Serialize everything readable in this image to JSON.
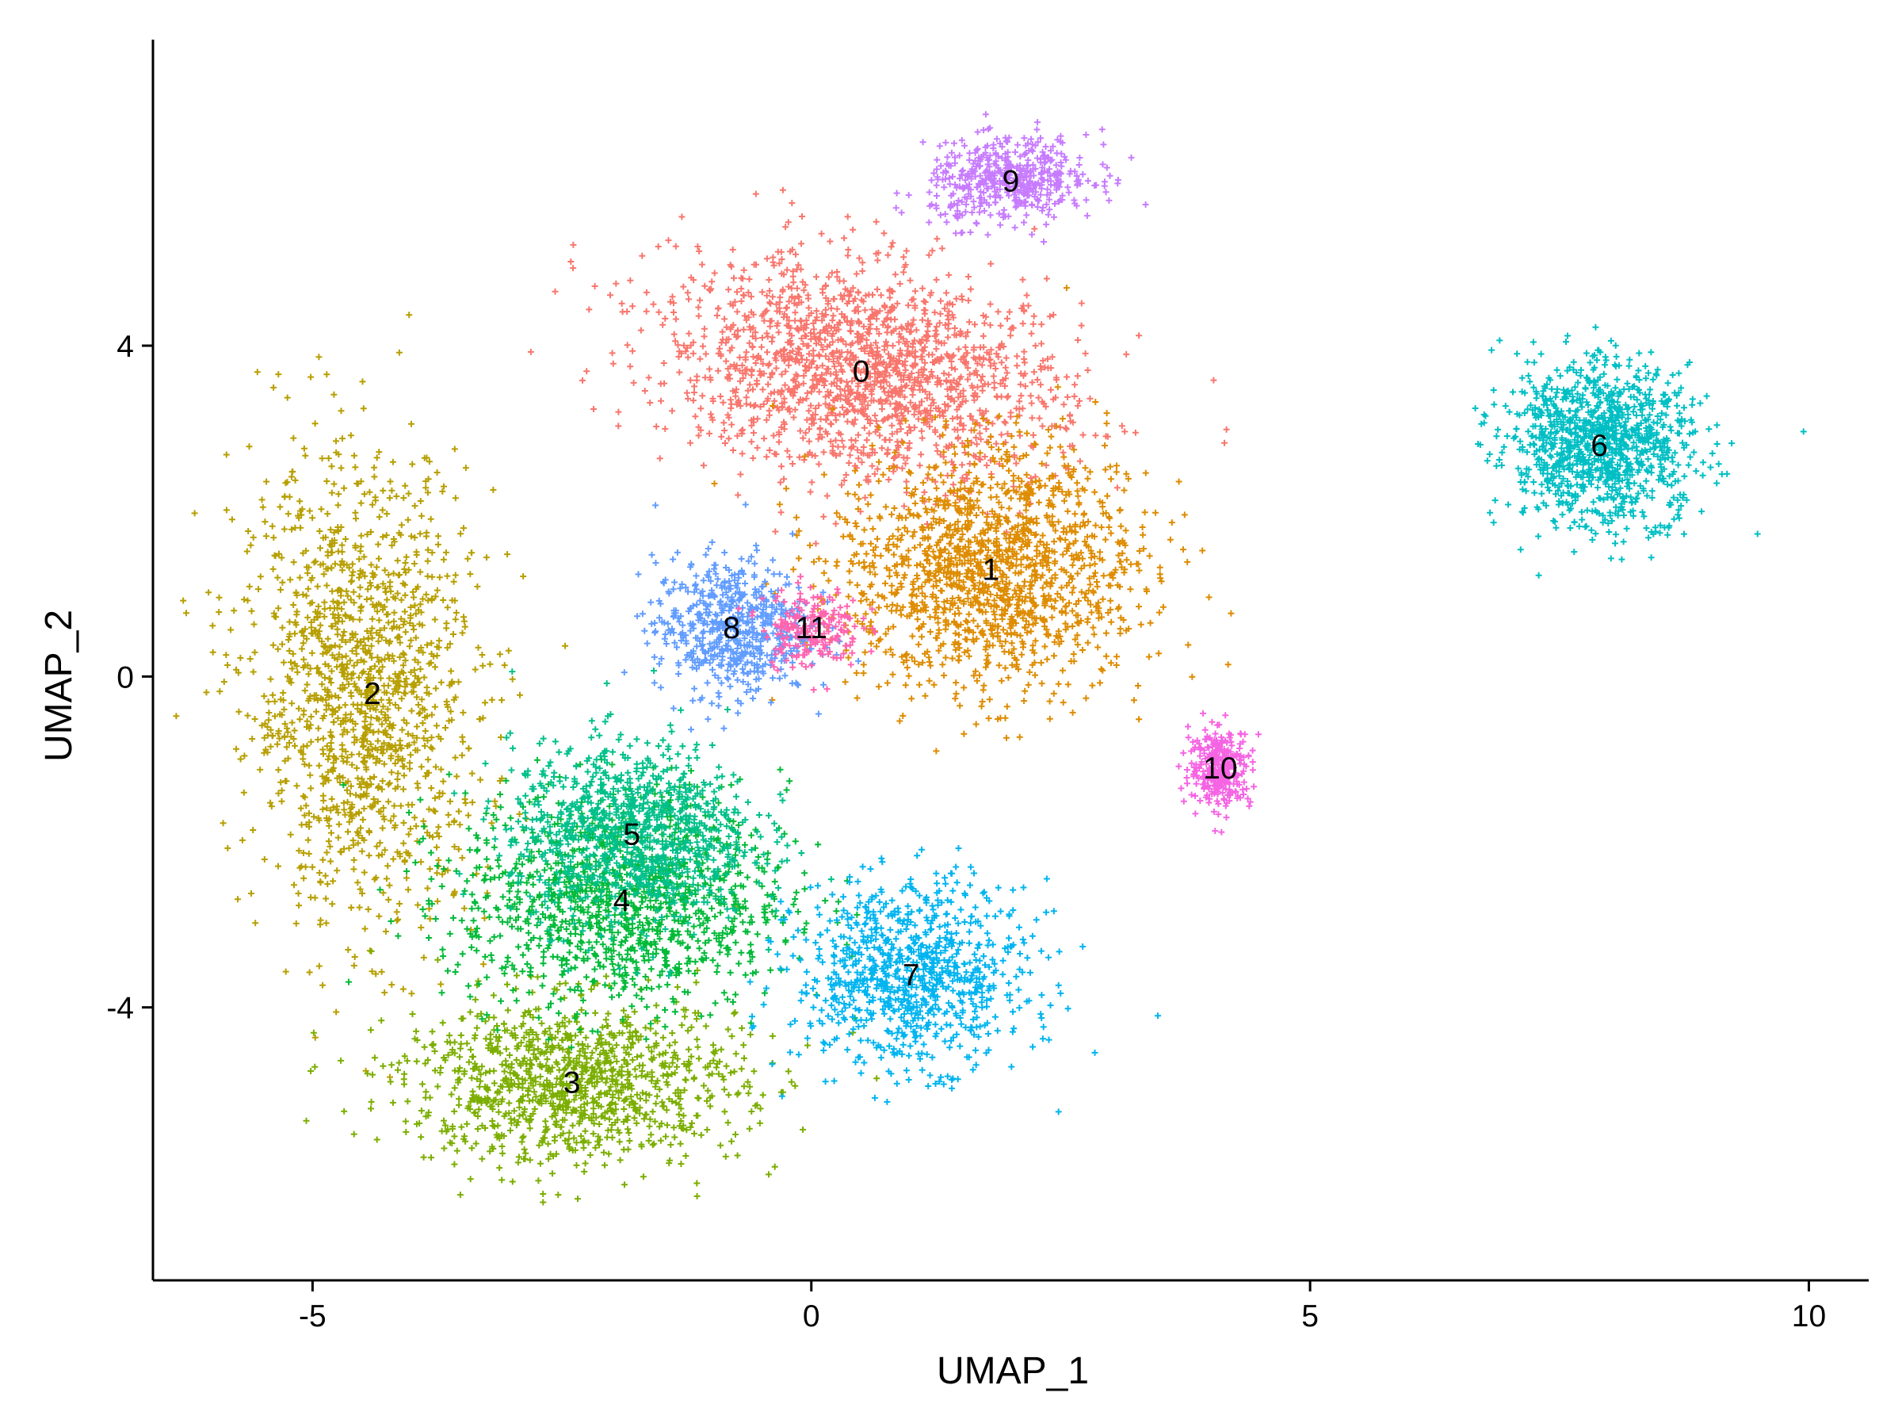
{
  "chart_data": {
    "type": "scatter",
    "title": "",
    "xlabel": "UMAP_1",
    "ylabel": "UMAP_2",
    "xlim": [
      -6.6,
      10.6
    ],
    "ylim": [
      -7.3,
      7.7
    ],
    "xticks": [
      -5,
      0,
      5,
      10
    ],
    "yticks": [
      -4,
      0,
      4
    ],
    "xtick_labels": [
      "-5",
      "0",
      "5",
      "10"
    ],
    "ytick_labels": [
      "-4",
      "0",
      "4"
    ],
    "grid": false,
    "legend": "none",
    "marker": "plus",
    "clusters": [
      {
        "label": "0",
        "color": "#F8766D",
        "center": [
          0.5,
          3.7
        ],
        "label_pos": [
          0.5,
          3.7
        ]
      },
      {
        "label": "1",
        "color": "#DE8C00",
        "center": [
          1.8,
          1.3
        ],
        "label_pos": [
          1.8,
          1.3
        ]
      },
      {
        "label": "2",
        "color": "#B79F00",
        "center": [
          -4.5,
          -0.2
        ],
        "label_pos": [
          -4.4,
          -0.2
        ]
      },
      {
        "label": "3",
        "color": "#7CAE00",
        "center": [
          -2.4,
          -4.9
        ],
        "label_pos": [
          -2.4,
          -4.9
        ]
      },
      {
        "label": "4",
        "color": "#00BA38",
        "center": [
          -1.9,
          -2.7
        ],
        "label_pos": [
          -1.9,
          -2.7
        ]
      },
      {
        "label": "5",
        "color": "#00C08B",
        "center": [
          -1.8,
          -1.9
        ],
        "label_pos": [
          -1.8,
          -1.9
        ]
      },
      {
        "label": "6",
        "color": "#00BFC4",
        "center": [
          7.9,
          2.8
        ],
        "label_pos": [
          7.9,
          2.8
        ]
      },
      {
        "label": "7",
        "color": "#00B4F0",
        "center": [
          1.0,
          -3.6
        ],
        "label_pos": [
          1.0,
          -3.6
        ]
      },
      {
        "label": "8",
        "color": "#619CFF",
        "center": [
          -0.8,
          0.6
        ],
        "label_pos": [
          -0.8,
          0.6
        ]
      },
      {
        "label": "9",
        "color": "#C77CFF",
        "center": [
          2.0,
          6.0
        ],
        "label_pos": [
          2.0,
          6.0
        ]
      },
      {
        "label": "10",
        "color": "#F564E3",
        "center": [
          4.1,
          -1.1
        ],
        "label_pos": [
          4.1,
          -1.1
        ]
      },
      {
        "label": "11",
        "color": "#FF64B0",
        "center": [
          0.0,
          0.6
        ],
        "label_pos": [
          0.0,
          0.6
        ]
      }
    ]
  }
}
